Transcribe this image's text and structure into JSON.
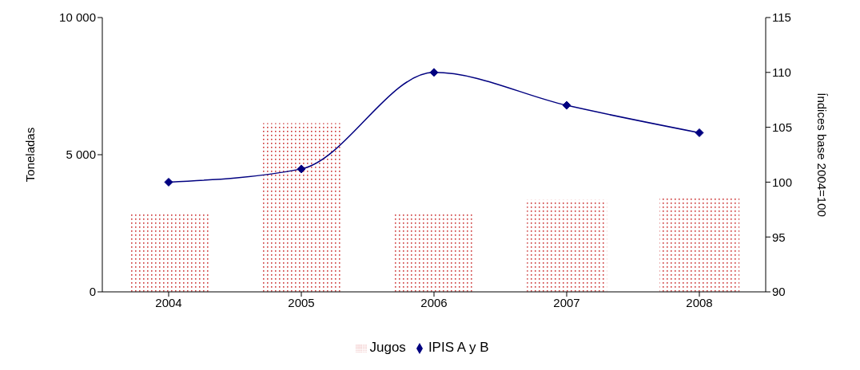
{
  "chart_data": {
    "type": "bar",
    "categories": [
      "2004",
      "2005",
      "2006",
      "2007",
      "2008"
    ],
    "ylabel": "Toneladas",
    "y2label": "Índices base 2004=100",
    "ylim": [
      0,
      10000
    ],
    "yticks": [
      0,
      {
        "value": 5000,
        "label": "5 000"
      },
      {
        "value": 10000,
        "label": "10 000"
      }
    ],
    "y2lim": [
      90,
      115
    ],
    "y2ticks": [
      90,
      95,
      100,
      105,
      110,
      115
    ],
    "series": [
      {
        "name": "Jugos",
        "color": "#cc3333",
        "values": [
          2900,
          6150,
          2900,
          3350,
          3480
        ]
      },
      {
        "name": "IPIS A y B",
        "type": "line",
        "axis": "y2",
        "color": "#000080",
        "marker": "diamond",
        "values": [
          100.0,
          101.2,
          110.0,
          107.0,
          104.5
        ]
      }
    ],
    "legend": "bottom",
    "grid": false
  }
}
